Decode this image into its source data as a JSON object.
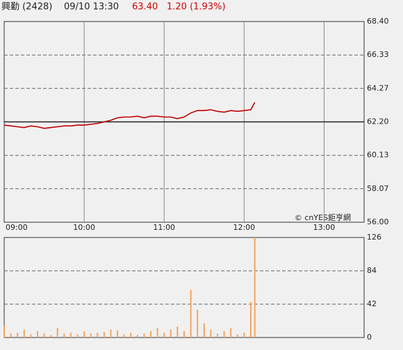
{
  "header": {
    "title": "興勤 (2428)",
    "datetime": "09/10 13:30",
    "last_price": "63.40",
    "change": "1.20 (1.93%)"
  },
  "chart_data": [
    {
      "type": "line",
      "color": "#c00000",
      "watermark": "© cnYES鉅亨網",
      "x": [
        "09:00",
        "09:05",
        "09:10",
        "09:15",
        "09:20",
        "09:25",
        "09:30",
        "09:35",
        "09:40",
        "09:45",
        "09:50",
        "09:55",
        "10:00",
        "10:05",
        "10:10",
        "10:15",
        "10:20",
        "10:25",
        "10:30",
        "10:35",
        "10:40",
        "10:45",
        "10:50",
        "10:55",
        "11:00",
        "11:05",
        "11:10",
        "11:15",
        "11:20",
        "11:25",
        "11:30",
        "11:35",
        "11:40",
        "11:45",
        "11:50",
        "11:55",
        "12:00",
        "12:05",
        "12:08"
      ],
      "values": [
        62.0,
        61.95,
        61.9,
        61.85,
        61.95,
        61.9,
        61.8,
        61.85,
        61.9,
        61.95,
        61.95,
        62.0,
        62.0,
        62.05,
        62.1,
        62.2,
        62.3,
        62.45,
        62.5,
        62.5,
        62.55,
        62.45,
        62.55,
        62.55,
        62.5,
        62.5,
        62.4,
        62.5,
        62.75,
        62.9,
        62.9,
        62.95,
        62.85,
        62.8,
        62.9,
        62.85,
        62.9,
        62.95,
        63.4
      ],
      "xlim": [
        "09:00",
        "13:30"
      ],
      "xticks": [
        "09:00",
        "10:00",
        "11:00",
        "12:00",
        "13:00"
      ],
      "ylim": [
        56.0,
        68.4
      ],
      "yticks": [
        {
          "value": 56.0,
          "label": "56.00"
        },
        {
          "value": 58.07,
          "label": "58.07"
        },
        {
          "value": 60.13,
          "label": "60.13"
        },
        {
          "value": 62.2,
          "label": "62.20"
        },
        {
          "value": 64.27,
          "label": "64.27"
        },
        {
          "value": 66.33,
          "label": "66.33"
        },
        {
          "value": 68.4,
          "label": "68.40"
        }
      ],
      "reference": 62.2,
      "grid": true
    },
    {
      "type": "bar",
      "color": "#f4a460",
      "x": [
        "09:00",
        "09:05",
        "09:10",
        "09:15",
        "09:20",
        "09:25",
        "09:30",
        "09:35",
        "09:40",
        "09:45",
        "09:50",
        "09:55",
        "10:00",
        "10:05",
        "10:10",
        "10:15",
        "10:20",
        "10:25",
        "10:30",
        "10:35",
        "10:40",
        "10:45",
        "10:50",
        "10:55",
        "11:00",
        "11:05",
        "11:10",
        "11:15",
        "11:20",
        "11:25",
        "11:30",
        "11:35",
        "11:40",
        "11:45",
        "11:50",
        "11:55",
        "12:00",
        "12:05",
        "12:08"
      ],
      "values": [
        15,
        5,
        6,
        10,
        4,
        8,
        5,
        3,
        12,
        5,
        6,
        4,
        8,
        5,
        6,
        7,
        10,
        9,
        4,
        6,
        3,
        5,
        8,
        12,
        6,
        10,
        14,
        8,
        60,
        35,
        18,
        10,
        5,
        8,
        12,
        4,
        6,
        45,
        126
      ],
      "xlim": [
        "09:00",
        "13:30"
      ],
      "ylim": [
        0,
        126
      ],
      "yticks": [
        0,
        42,
        84,
        126
      ],
      "grid": true
    }
  ]
}
